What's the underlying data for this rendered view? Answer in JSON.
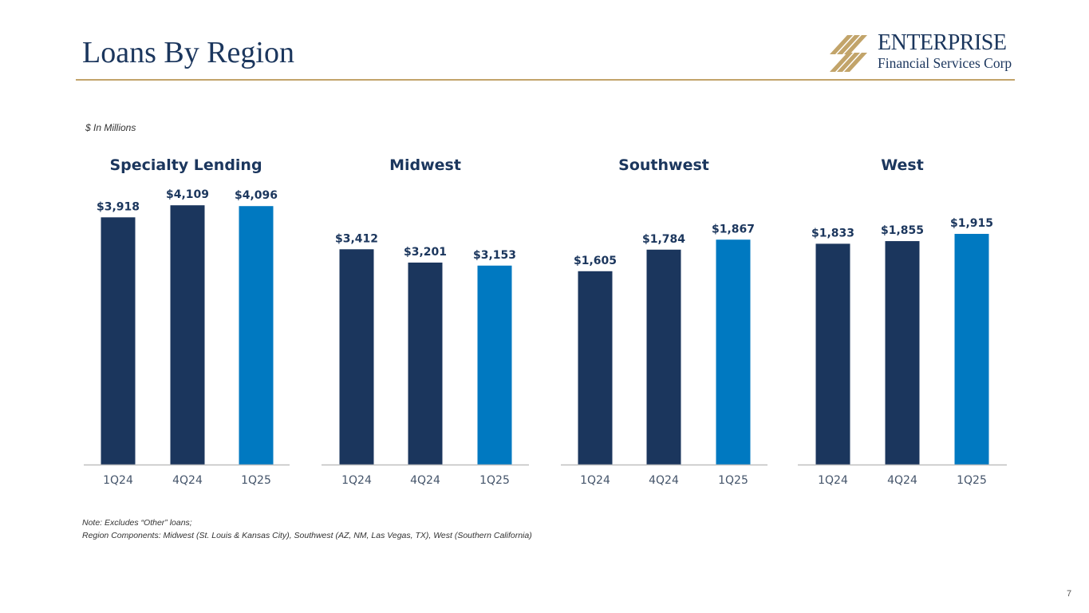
{
  "page": {
    "title": "Loans By Region",
    "units_label": "$ In Millions",
    "note_line1": "Note: Excludes “Other” loans;",
    "note_line2": "Region Components: Midwest (St. Louis & Kansas City), Southwest (AZ, NM, Las Vegas, TX), West (Southern California)",
    "page_number": "7"
  },
  "logo": {
    "name": "ENTERPRISE",
    "subtitle": "Financial Services Corp",
    "icon": "striped-chevron-logo-icon"
  },
  "colors": {
    "title": "#1b365d",
    "rule": "#c2a46a",
    "bar_prior": "#1b365d",
    "bar_current": "#0079c1",
    "axis": "#bfbfbf",
    "tick": "#44546a",
    "label": "#1b365d"
  },
  "chart_data": [
    {
      "type": "bar",
      "title": "Specialty Lending",
      "categories": [
        "1Q24",
        "4Q24",
        "1Q25"
      ],
      "values": [
        3918,
        4109,
        4096
      ],
      "labels": [
        "$3,918",
        "$4,109",
        "$4,096"
      ],
      "ylim": [
        0,
        4200
      ],
      "xlabel": "",
      "ylabel": ""
    },
    {
      "type": "bar",
      "title": "Midwest",
      "categories": [
        "1Q24",
        "4Q24",
        "1Q25"
      ],
      "values": [
        3412,
        3201,
        3153
      ],
      "labels": [
        "$3,412",
        "$3,201",
        "$3,153"
      ],
      "ylim": [
        0,
        4200
      ],
      "xlabel": "",
      "ylabel": ""
    },
    {
      "type": "bar",
      "title": "Southwest",
      "categories": [
        "1Q24",
        "4Q24",
        "1Q25"
      ],
      "values": [
        1605,
        1784,
        1867
      ],
      "labels": [
        "$1,605",
        "$1,784",
        "$1,867"
      ],
      "ylim": [
        0,
        2200
      ],
      "xlabel": "",
      "ylabel": ""
    },
    {
      "type": "bar",
      "title": "West",
      "categories": [
        "1Q24",
        "4Q24",
        "1Q25"
      ],
      "values": [
        1833,
        1855,
        1915
      ],
      "labels": [
        "$1,833",
        "$1,855",
        "$1,915"
      ],
      "ylim": [
        0,
        2200
      ],
      "xlabel": "",
      "ylabel": ""
    }
  ]
}
